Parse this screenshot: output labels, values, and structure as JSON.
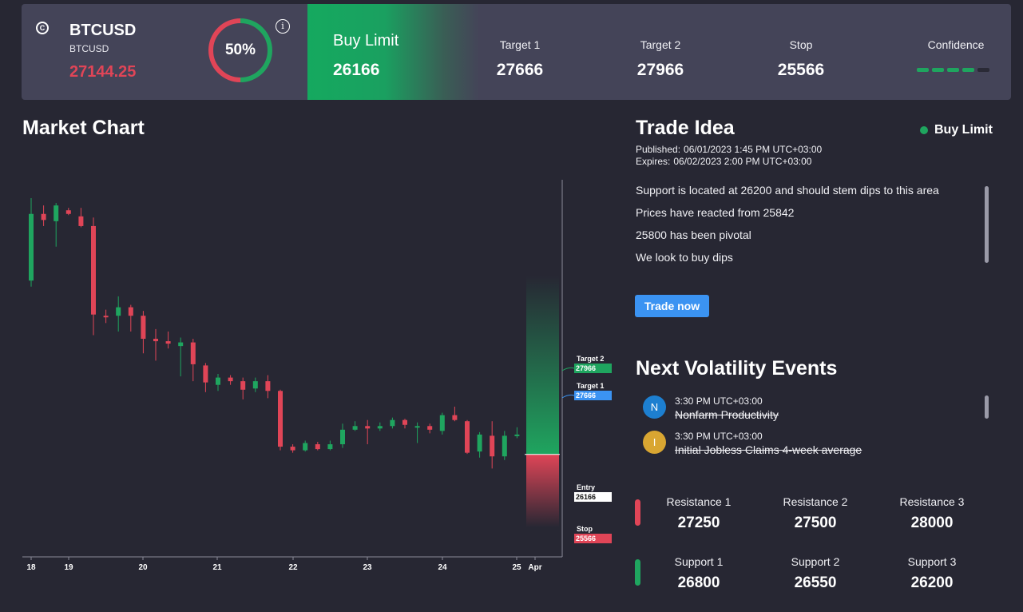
{
  "symbol": {
    "icon": "copyright-icon",
    "name": "BTCUSD",
    "sub": "BTCUSD",
    "price": "27144.25"
  },
  "gauge": {
    "percent": 50,
    "label": "50%"
  },
  "order": {
    "type": "Buy Limit",
    "price": "26166"
  },
  "stats": [
    {
      "label": "Target 1",
      "value": "27666"
    },
    {
      "label": "Target 2",
      "value": "27966"
    },
    {
      "label": "Stop",
      "value": "25566"
    }
  ],
  "confidence": {
    "label": "Confidence",
    "level": 4,
    "max": 5
  },
  "chart": {
    "title": "Market Chart",
    "x_labels": [
      "18",
      "19",
      "20",
      "21",
      "22",
      "23",
      "24",
      "25",
      "Apr"
    ],
    "markers": {
      "target2": {
        "label": "Target 2",
        "value": "27966"
      },
      "target1": {
        "label": "Target 1",
        "value": "27666"
      },
      "entry": {
        "label": "Entry",
        "value": "26166"
      },
      "stop": {
        "label": "Stop",
        "value": "25566"
      }
    }
  },
  "chart_data": {
    "type": "candlestick",
    "x_tick_labels": [
      "18",
      "19",
      "20",
      "21",
      "22",
      "23",
      "24",
      "25",
      "Apr"
    ],
    "candles": [
      {
        "o": 27600,
        "c": 28150,
        "h": 28280,
        "l": 27550
      },
      {
        "o": 28150,
        "c": 28100,
        "h": 28220,
        "l": 28050
      },
      {
        "o": 28090,
        "c": 28220,
        "h": 28240,
        "l": 27880
      },
      {
        "o": 28180,
        "c": 28150,
        "h": 28200,
        "l": 28140
      },
      {
        "o": 28130,
        "c": 28050,
        "h": 28200,
        "l": 28040
      },
      {
        "o": 28050,
        "c": 27320,
        "h": 28120,
        "l": 27150
      },
      {
        "o": 27310,
        "c": 27300,
        "h": 27360,
        "l": 27250
      },
      {
        "o": 27310,
        "c": 27380,
        "h": 27470,
        "l": 27180
      },
      {
        "o": 27380,
        "c": 27310,
        "h": 27400,
        "l": 27180
      },
      {
        "o": 27310,
        "c": 27120,
        "h": 27350,
        "l": 27000
      },
      {
        "o": 27120,
        "c": 27100,
        "h": 27200,
        "l": 26940
      },
      {
        "o": 27100,
        "c": 27080,
        "h": 27180,
        "l": 27040
      },
      {
        "o": 27060,
        "c": 27090,
        "h": 27130,
        "l": 26810
      },
      {
        "o": 27090,
        "c": 26910,
        "h": 27120,
        "l": 26770
      },
      {
        "o": 26900,
        "c": 26760,
        "h": 26920,
        "l": 26680
      },
      {
        "o": 26740,
        "c": 26800,
        "h": 26830,
        "l": 26690
      },
      {
        "o": 26800,
        "c": 26770,
        "h": 26820,
        "l": 26740
      },
      {
        "o": 26770,
        "c": 26700,
        "h": 26800,
        "l": 26620
      },
      {
        "o": 26710,
        "c": 26770,
        "h": 26800,
        "l": 26680
      },
      {
        "o": 26770,
        "c": 26690,
        "h": 26820,
        "l": 26630
      },
      {
        "o": 26690,
        "c": 26230,
        "h": 26700,
        "l": 26200
      },
      {
        "o": 26230,
        "c": 26200,
        "h": 26250,
        "l": 26180
      },
      {
        "o": 26200,
        "c": 26260,
        "h": 26280,
        "l": 26190
      },
      {
        "o": 26250,
        "c": 26210,
        "h": 26270,
        "l": 26200
      },
      {
        "o": 26210,
        "c": 26250,
        "h": 26280,
        "l": 26200
      },
      {
        "o": 26250,
        "c": 26370,
        "h": 26420,
        "l": 26220
      },
      {
        "o": 26370,
        "c": 26400,
        "h": 26440,
        "l": 26360
      },
      {
        "o": 26400,
        "c": 26380,
        "h": 26450,
        "l": 26250
      },
      {
        "o": 26380,
        "c": 26400,
        "h": 26430,
        "l": 26360
      },
      {
        "o": 26400,
        "c": 26450,
        "h": 26470,
        "l": 26380
      },
      {
        "o": 26450,
        "c": 26410,
        "h": 26460,
        "l": 26380
      },
      {
        "o": 26400,
        "c": 26400,
        "h": 26430,
        "l": 26260
      },
      {
        "o": 26400,
        "c": 26370,
        "h": 26420,
        "l": 26340
      },
      {
        "o": 26360,
        "c": 26490,
        "h": 26510,
        "l": 26330
      },
      {
        "o": 26490,
        "c": 26450,
        "h": 26560,
        "l": 26440
      },
      {
        "o": 26440,
        "c": 26180,
        "h": 26450,
        "l": 26170
      },
      {
        "o": 26190,
        "c": 26330,
        "h": 26350,
        "l": 26140
      },
      {
        "o": 26320,
        "c": 26150,
        "h": 26440,
        "l": 26050
      },
      {
        "o": 26150,
        "c": 26320,
        "h": 26360,
        "l": 26120
      },
      {
        "o": 26320,
        "c": 26330,
        "h": 26390,
        "l": 26300
      }
    ],
    "levels": {
      "target2": 27966,
      "target1": 27666,
      "entry": 26166,
      "stop": 25566
    }
  },
  "trade_idea": {
    "title": "Trade Idea",
    "status": "Buy Limit",
    "published_label": "Published:",
    "published": "06/01/2023 1:45 PM UTC+03:00",
    "expires_label": "Expires:",
    "expires": "06/02/2023 2:00 PM UTC+03:00",
    "lines": [
      "Support is located at 26200 and should stem dips to this area",
      "Prices have reacted from 25842",
      "25800 has been pivotal",
      "We look to buy dips"
    ],
    "button": "Trade now"
  },
  "events": {
    "title": "Next Volatility Events",
    "items": [
      {
        "badge": "N",
        "color": "#1d7fd0",
        "time": "3:30 PM UTC+03:00",
        "name": "Nonfarm Productivity"
      },
      {
        "badge": "I",
        "color": "#d9a632",
        "time": "3:30 PM UTC+03:00",
        "name": "Initial Jobless Claims 4-week average"
      }
    ]
  },
  "levels": {
    "resistance": [
      {
        "label": "Resistance 1",
        "value": "27250"
      },
      {
        "label": "Resistance 2",
        "value": "27500"
      },
      {
        "label": "Resistance 3",
        "value": "28000"
      }
    ],
    "support": [
      {
        "label": "Support 1",
        "value": "26800"
      },
      {
        "label": "Support 2",
        "value": "26550"
      },
      {
        "label": "Support 3",
        "value": "26200"
      }
    ]
  },
  "colors": {
    "green": "#1fa55f",
    "red": "#e04557",
    "blue": "#3b93f2",
    "bg": "#272733",
    "panel": "#444458"
  }
}
